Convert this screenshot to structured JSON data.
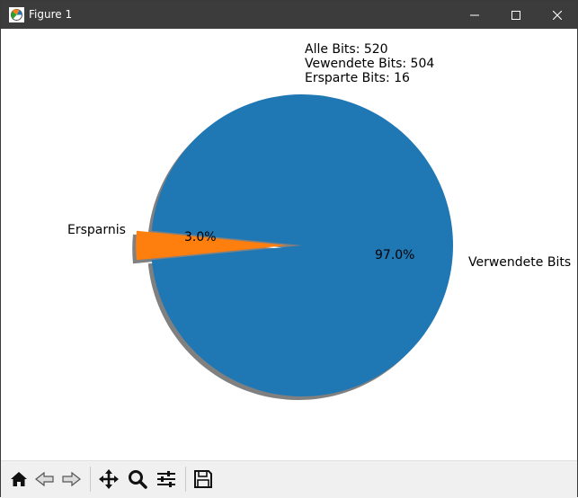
{
  "window": {
    "title": "Figure 1"
  },
  "annotation": {
    "line1": "Alle Bits: 520",
    "line2": "Vewendete Bits: 504",
    "line3": "Ersparte Bits: 16"
  },
  "chart_data": {
    "type": "pie",
    "slices": [
      {
        "label": "Verwendete Bits",
        "value": 504,
        "pct_label": "97.0%",
        "color": "#1f77b4",
        "exploded": false
      },
      {
        "label": "Ersparnis",
        "value": 16,
        "pct_label": "3.0%",
        "color": "#ff7f0e",
        "exploded": true
      }
    ],
    "shadow": true,
    "start_angle_deg": 180,
    "shadow_color": "#808080"
  },
  "toolbar": {
    "buttons": [
      {
        "name": "home-button",
        "icon": "home-icon"
      },
      {
        "name": "back-button",
        "icon": "arrow-left-icon"
      },
      {
        "name": "forward-button",
        "icon": "arrow-right-icon"
      },
      {
        "name": "pan-button",
        "icon": "move-icon"
      },
      {
        "name": "zoom-button",
        "icon": "magnifier-icon"
      },
      {
        "name": "configure-subplots-button",
        "icon": "sliders-icon"
      },
      {
        "name": "save-button",
        "icon": "floppy-disk-icon"
      }
    ]
  }
}
